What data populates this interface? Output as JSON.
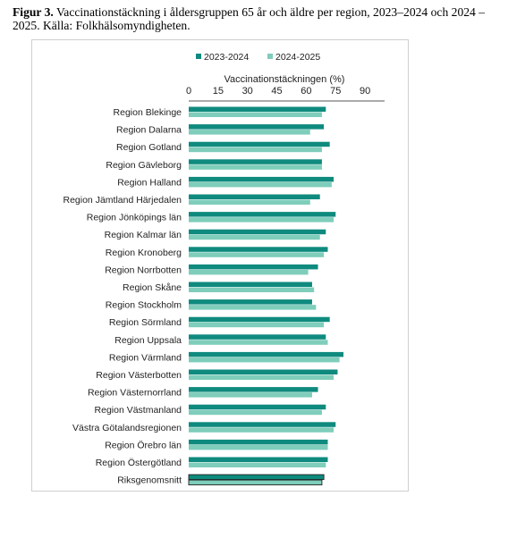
{
  "figure": {
    "label": "Figur 3.",
    "caption": "Vaccinationstäckning i åldersgruppen 65 år och äldre per region, 2023–2024 och 2024 – 2025. Källa: Folkhälsomyndigheten."
  },
  "chart_data": {
    "type": "bar",
    "orientation": "horizontal",
    "xlabel": "Vaccinationstäckningen (%)",
    "xlim": [
      0,
      100
    ],
    "xticks": [
      0,
      15,
      30,
      45,
      60,
      75,
      90
    ],
    "legend_position": "top",
    "categories": [
      "Region Blekinge",
      "Region Dalarna",
      "Region Gotland",
      "Region Gävleborg",
      "Region Halland",
      "Region Jämtland Härjedalen",
      "Region Jönköpings län",
      "Region Kalmar län",
      "Region Kronoberg",
      "Region Norrbotten",
      "Region Skåne",
      "Region Stockholm",
      "Region Sörmland",
      "Region Uppsala",
      "Region Värmland",
      "Region Västerbotten",
      "Region Västernorrland",
      "Region Västmanland",
      "Västra Götalandsregionen",
      "Region Örebro län",
      "Region Östergötland",
      "Riksgenomsnitt"
    ],
    "series": [
      {
        "name": "2023-2024",
        "color": "#0f8a7e",
        "values": [
          70,
          69,
          72,
          68,
          74,
          67,
          75,
          70,
          71,
          66,
          63,
          63,
          72,
          70,
          79,
          76,
          66,
          70,
          75,
          71,
          71,
          69
        ]
      },
      {
        "name": "2024-2025",
        "color": "#7fcdbb",
        "values": [
          68,
          62,
          68,
          68,
          73,
          62,
          74,
          67,
          69,
          61,
          64,
          65,
          69,
          71,
          77,
          74,
          63,
          68,
          74,
          71,
          70,
          68
        ]
      }
    ],
    "highlight_category": "Riksgenomsnitt",
    "highlight_outline": "#222222"
  }
}
